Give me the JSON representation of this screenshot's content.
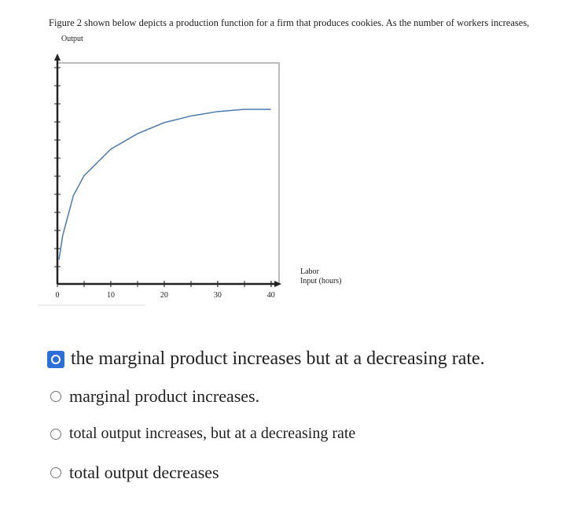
{
  "question": "Figure 2 shown below depicts a production function for a firm that produces cookies. As the number of workers increases,",
  "figure": {
    "type": "line",
    "y_label": "Output",
    "x_label": [
      "Labor",
      "Input (hours)"
    ],
    "x": [
      0.3,
      1,
      3,
      5,
      10,
      15,
      20,
      25,
      30,
      35,
      40
    ],
    "values": [
      11,
      22,
      40,
      49,
      61,
      68,
      73,
      76,
      78,
      79,
      79
    ],
    "color": "#4a7bb0",
    "xlim": [
      0,
      41.5
    ],
    "ylim": [
      0,
      100
    ],
    "xticks": [
      0,
      10,
      20,
      30,
      40
    ]
  },
  "options": [
    {
      "text": "the marginal product increases but at a decreasing rate.",
      "selected": true
    },
    {
      "text": "marginal product increases.",
      "selected": false
    },
    {
      "text": "total output increases, but at a decreasing rate",
      "selected": false
    },
    {
      "text": "total output decreases",
      "selected": false
    }
  ]
}
